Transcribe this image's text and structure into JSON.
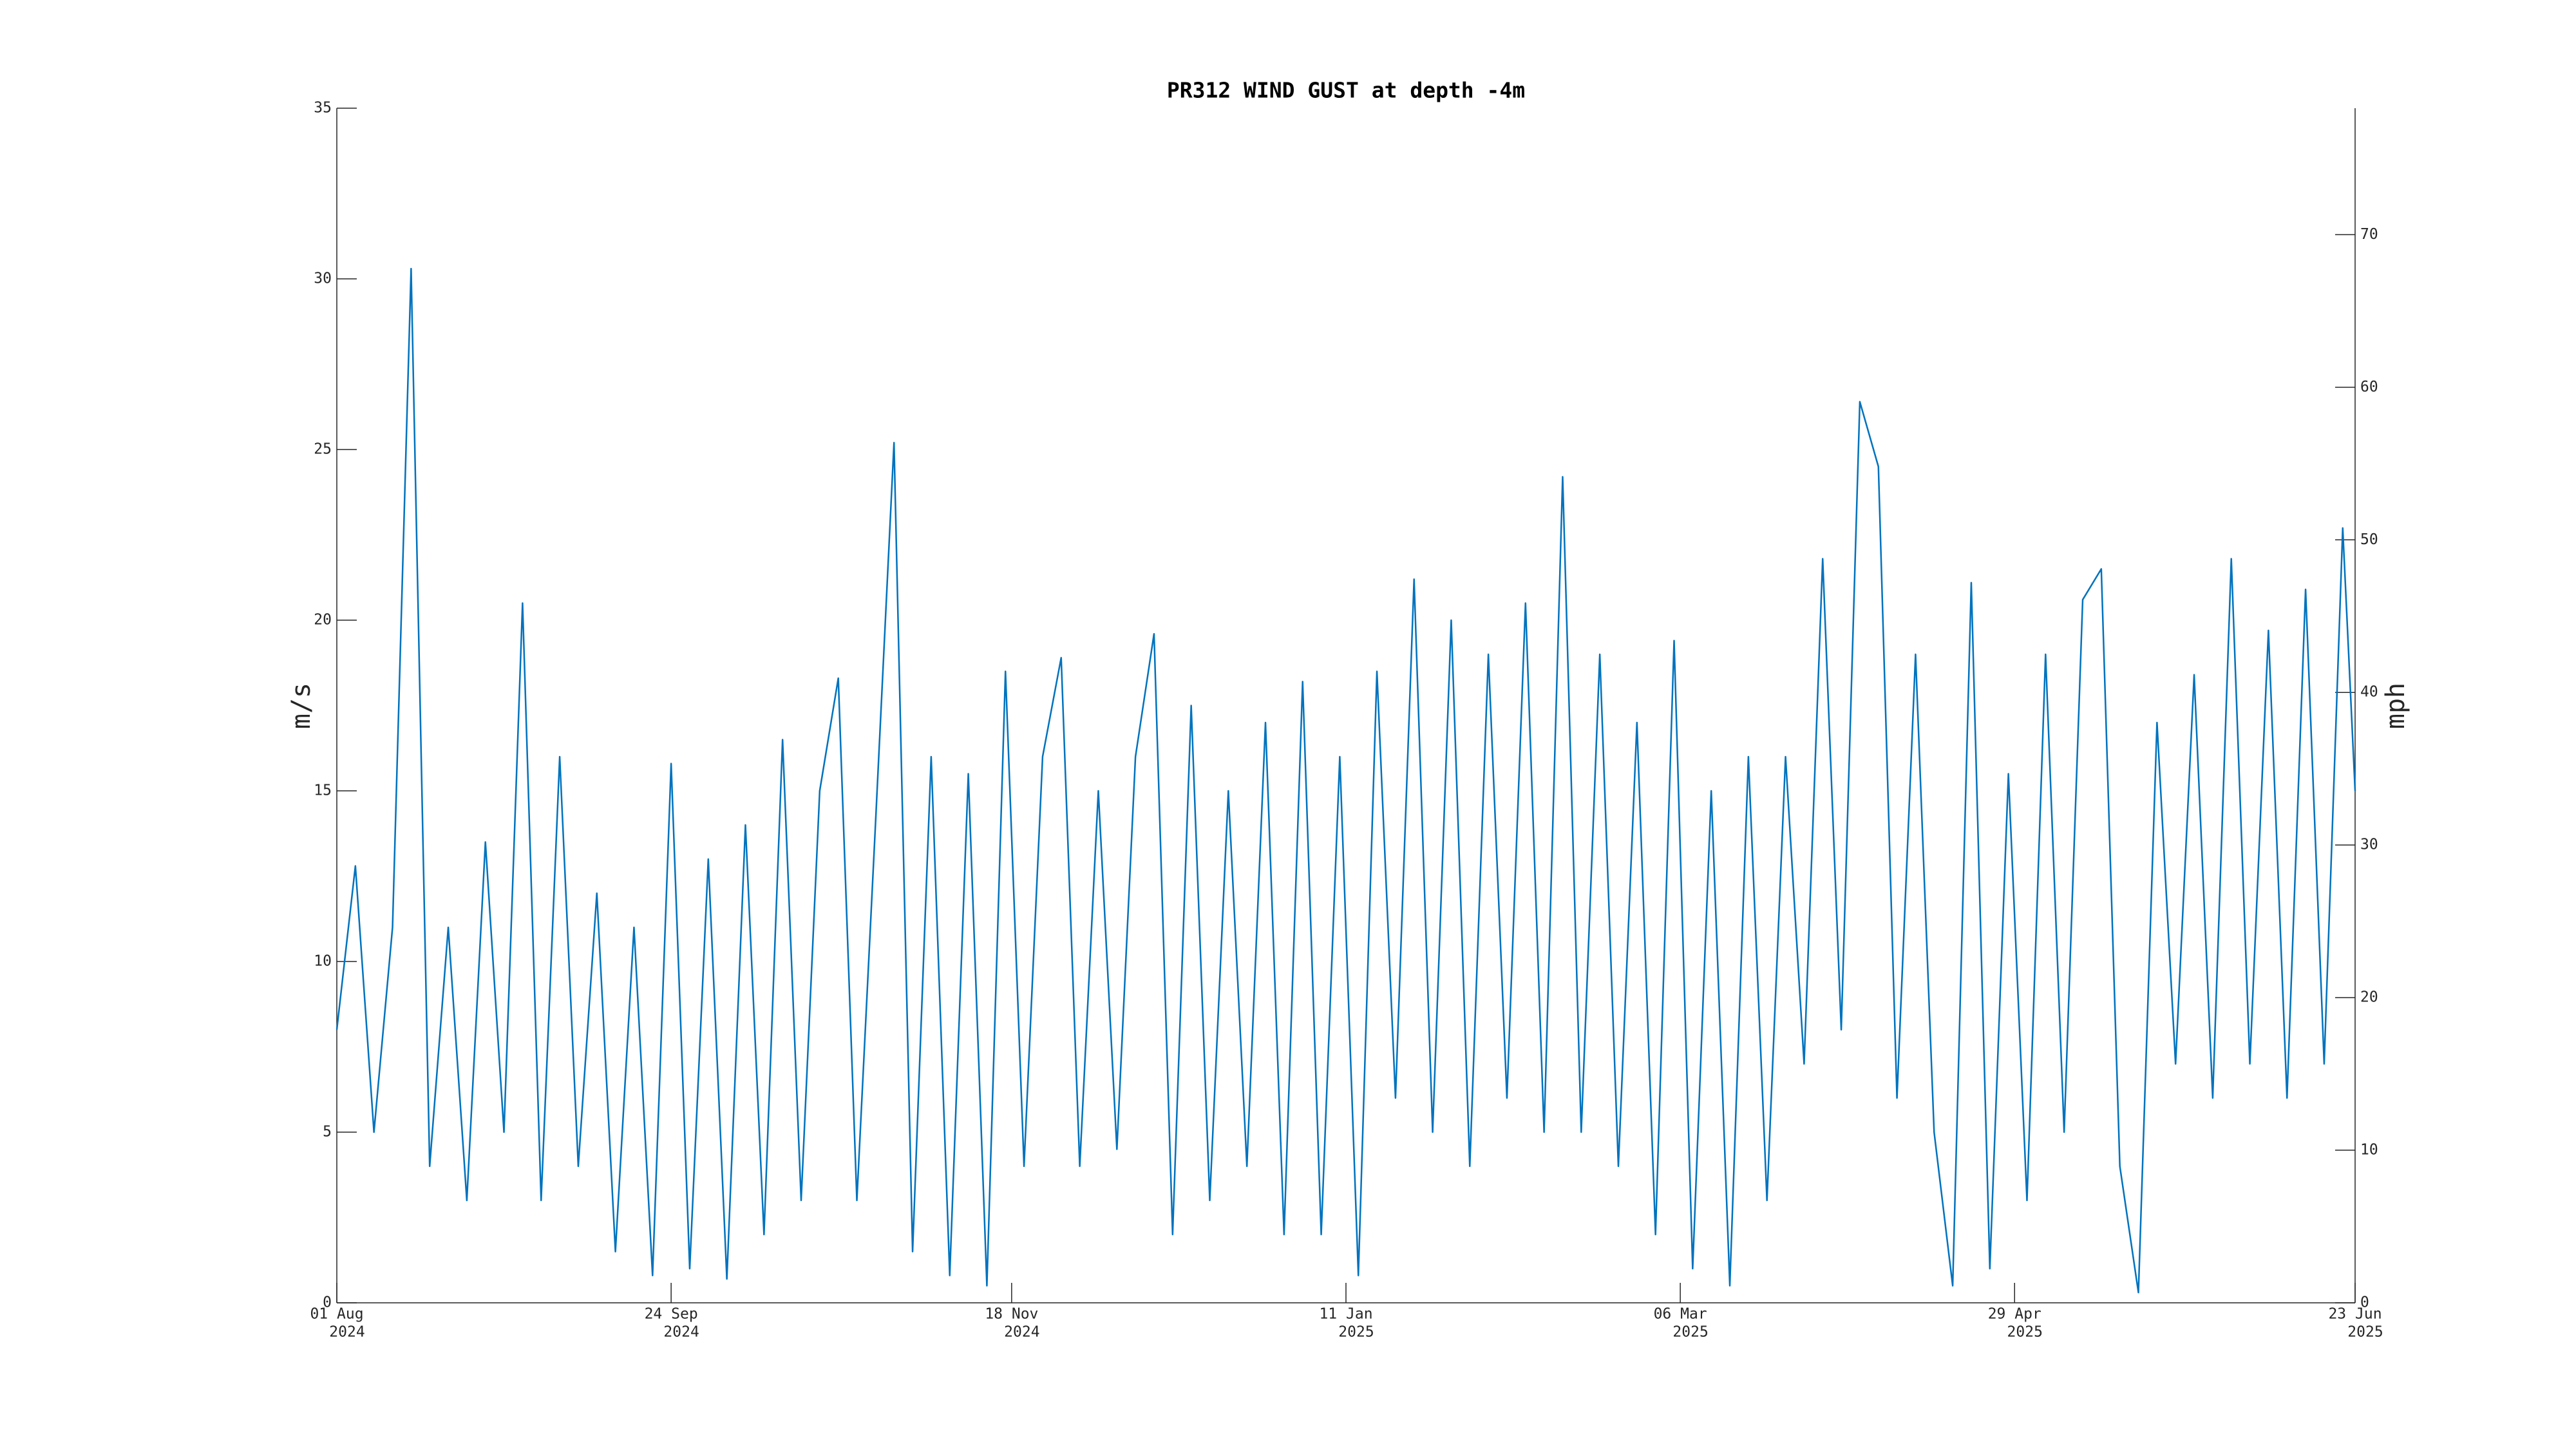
{
  "chart_data": {
    "type": "line",
    "title": "PR312 WIND GUST at depth -4m",
    "ylabel": "m/s",
    "y2label": "mph",
    "color": "#0072bd",
    "x": [
      "2024-08-01",
      "2024-08-04",
      "2024-08-07",
      "2024-08-10",
      "2024-08-13",
      "2024-08-16",
      "2024-08-19",
      "2024-08-22",
      "2024-08-25",
      "2024-08-28",
      "2024-08-31",
      "2024-09-03",
      "2024-09-06",
      "2024-09-09",
      "2024-09-12",
      "2024-09-15",
      "2024-09-18",
      "2024-09-21",
      "2024-09-24",
      "2024-09-27",
      "2024-09-30",
      "2024-10-03",
      "2024-10-06",
      "2024-10-09",
      "2024-10-12",
      "2024-10-15",
      "2024-10-18",
      "2024-10-21",
      "2024-10-24",
      "2024-10-27",
      "2024-10-30",
      "2024-11-02",
      "2024-11-05",
      "2024-11-08",
      "2024-11-11",
      "2024-11-14",
      "2024-11-17",
      "2024-11-20",
      "2024-11-23",
      "2024-11-26",
      "2024-11-29",
      "2024-12-02",
      "2024-12-05",
      "2024-12-08",
      "2024-12-11",
      "2024-12-14",
      "2024-12-17",
      "2024-12-20",
      "2024-12-23",
      "2024-12-26",
      "2024-12-29",
      "2025-01-01",
      "2025-01-04",
      "2025-01-07",
      "2025-01-10",
      "2025-01-13",
      "2025-01-16",
      "2025-01-19",
      "2025-01-22",
      "2025-01-25",
      "2025-01-28",
      "2025-01-31",
      "2025-02-03",
      "2025-02-06",
      "2025-02-09",
      "2025-02-12",
      "2025-02-15",
      "2025-02-18",
      "2025-02-21",
      "2025-02-24",
      "2025-02-27",
      "2025-03-02",
      "2025-03-05",
      "2025-03-08",
      "2025-03-11",
      "2025-03-14",
      "2025-03-17",
      "2025-03-20",
      "2025-03-23",
      "2025-03-26",
      "2025-03-29",
      "2025-04-01",
      "2025-04-04",
      "2025-04-07",
      "2025-04-10",
      "2025-04-13",
      "2025-04-16",
      "2025-04-19",
      "2025-04-22",
      "2025-04-25",
      "2025-04-28",
      "2025-05-01",
      "2025-05-04",
      "2025-05-07",
      "2025-05-10",
      "2025-05-13",
      "2025-05-16",
      "2025-05-19",
      "2025-05-22",
      "2025-05-25",
      "2025-05-28",
      "2025-05-31",
      "2025-06-03",
      "2025-06-06",
      "2025-06-09",
      "2025-06-12",
      "2025-06-15",
      "2025-06-18",
      "2025-06-21",
      "2025-06-23"
    ],
    "values": [
      8,
      12.8,
      5,
      11,
      30.3,
      4,
      11,
      3,
      13.5,
      5,
      20.5,
      3,
      16,
      4,
      12,
      1.5,
      11,
      0.8,
      15.8,
      1,
      13,
      0.7,
      14,
      2,
      16.5,
      3,
      15,
      18.3,
      3,
      14,
      25.2,
      1.5,
      16,
      0.8,
      15.5,
      0.5,
      18.5,
      4,
      16,
      18.9,
      4,
      15,
      4.5,
      16,
      19.6,
      2,
      17.5,
      3,
      15,
      4,
      17,
      2,
      18.2,
      2,
      16,
      0.8,
      18.5,
      6,
      21.2,
      5,
      20,
      4,
      19,
      6,
      20.5,
      5,
      24.2,
      5,
      19,
      4,
      17,
      2,
      19.4,
      1,
      15,
      0.5,
      16,
      3,
      16,
      7,
      21.8,
      8,
      26.4,
      24.5,
      6,
      19,
      5,
      0.5,
      21.1,
      1,
      15.5,
      3,
      19,
      5,
      20.6,
      21.5,
      4,
      0.3,
      17,
      7,
      18.4,
      6,
      21.8,
      7,
      19.7,
      6,
      20.9,
      7,
      22.7,
      15
    ],
    "xlim": [
      "2024-08-01",
      "2025-06-23"
    ],
    "xticks": [
      {
        "value": "2024-08-01",
        "label": [
          "01 Aug",
          "2024"
        ]
      },
      {
        "value": "2024-09-24",
        "label": [
          "24 Sep",
          "2024"
        ]
      },
      {
        "value": "2024-11-18",
        "label": [
          "18 Nov",
          "2024"
        ]
      },
      {
        "value": "2025-01-11",
        "label": [
          "11 Jan",
          "2025"
        ]
      },
      {
        "value": "2025-03-06",
        "label": [
          "06 Mar",
          "2025"
        ]
      },
      {
        "value": "2025-04-29",
        "label": [
          "29 Apr",
          "2025"
        ]
      },
      {
        "value": "2025-06-23",
        "label": [
          "23 Jun",
          "2025"
        ]
      }
    ],
    "ylim": [
      0,
      35
    ],
    "yticks": [
      0,
      5,
      10,
      15,
      20,
      25,
      30,
      35
    ],
    "y2lim": [
      0,
      78.29
    ],
    "y2ticks": [
      0,
      10,
      20,
      30,
      40,
      50,
      60,
      70
    ],
    "grid": false
  }
}
